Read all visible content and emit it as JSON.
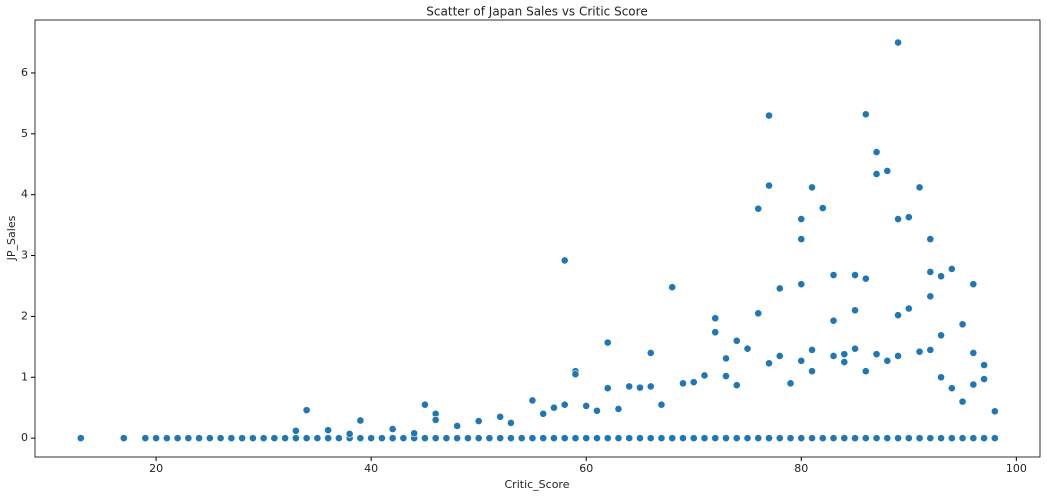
{
  "chart_data": {
    "type": "scatter",
    "title": "Scatter of Japan Sales vs Critic Score",
    "x_label": "Critic_Score",
    "y_label": "JP_Sales",
    "color": "#1f77b4",
    "xlim": [
      8.74,
      102.2
    ],
    "ylim": [
      -0.31,
      6.87
    ],
    "xticks": [
      20,
      40,
      60,
      80,
      100
    ],
    "yticks": [
      0,
      1,
      2,
      3,
      4,
      5,
      6
    ],
    "x": [
      13,
      17,
      19,
      20,
      21,
      22,
      23,
      24,
      25,
      26,
      27,
      28,
      29,
      30,
      31,
      32,
      33,
      34,
      35,
      36,
      37,
      38,
      39,
      40,
      41,
      42,
      43,
      44,
      45,
      46,
      47,
      48,
      49,
      50,
      51,
      52,
      53,
      54,
      55,
      56,
      57,
      58,
      59,
      60,
      61,
      62,
      63,
      64,
      65,
      66,
      67,
      68,
      69,
      70,
      71,
      72,
      73,
      74,
      75,
      76,
      77,
      78,
      79,
      80,
      81,
      82,
      83,
      84,
      85,
      86,
      87,
      88,
      89,
      90,
      91,
      92,
      93,
      94,
      95,
      96,
      97,
      98,
      33,
      34,
      36,
      38,
      39,
      42,
      44,
      45,
      46,
      46,
      48,
      50,
      52,
      53,
      55,
      56,
      57,
      58,
      58,
      59,
      59,
      60,
      61,
      62,
      62,
      63,
      64,
      65,
      66,
      66,
      67,
      68,
      69,
      70,
      71,
      72,
      72,
      73,
      73,
      74,
      74,
      75,
      76,
      76,
      77,
      77,
      77,
      78,
      78,
      79,
      80,
      80,
      80,
      80,
      81,
      81,
      81,
      82,
      83,
      83,
      83,
      84,
      84,
      85,
      85,
      85,
      86,
      86,
      86,
      87,
      87,
      87,
      88,
      88,
      89,
      89,
      89,
      89,
      90,
      90,
      91,
      91,
      92,
      92,
      92,
      92,
      93,
      93,
      93,
      94,
      94,
      95,
      95,
      96,
      96,
      96,
      97,
      97,
      98
    ],
    "y": [
      0,
      0,
      0,
      0,
      0,
      0,
      0,
      0,
      0,
      0,
      0,
      0,
      0,
      0,
      0,
      0,
      0,
      0,
      0,
      0,
      0,
      0,
      0,
      0,
      0,
      0,
      0,
      0,
      0,
      0,
      0,
      0,
      0,
      0,
      0,
      0,
      0,
      0,
      0,
      0,
      0,
      0,
      0,
      0,
      0,
      0,
      0,
      0,
      0,
      0,
      0,
      0,
      0,
      0,
      0,
      0,
      0,
      0,
      0,
      0,
      0,
      0,
      0,
      0,
      0,
      0,
      0,
      0,
      0,
      0,
      0,
      0,
      0,
      0,
      0,
      0,
      0,
      0,
      0,
      0,
      0,
      0,
      0.12,
      0.46,
      0.13,
      0.07,
      0.29,
      0.15,
      0.08,
      0.55,
      0.4,
      0.3,
      0.2,
      0.28,
      0.35,
      0.25,
      0.62,
      0.4,
      0.5,
      2.92,
      0.55,
      1.1,
      1.05,
      0.53,
      0.45,
      1.57,
      0.82,
      0.48,
      0.85,
      0.83,
      1.4,
      0.85,
      0.55,
      2.48,
      0.9,
      0.92,
      1.03,
      1.97,
      1.74,
      1.31,
      1.02,
      1.6,
      0.87,
      1.47,
      2.05,
      3.77,
      4.15,
      5.3,
      1.23,
      2.46,
      1.35,
      0.9,
      3.6,
      3.27,
      2.53,
      1.27,
      4.12,
      1.45,
      1.1,
      3.78,
      2.68,
      1.93,
      1.35,
      1.38,
      1.25,
      2.68,
      2.1,
      1.47,
      5.32,
      2.62,
      1.1,
      4.7,
      4.34,
      1.38,
      4.39,
      1.27,
      6.5,
      3.6,
      2.02,
      1.35,
      3.63,
      2.13,
      4.12,
      1.42,
      3.27,
      2.73,
      2.33,
      1.45,
      2.66,
      1.69,
      1.0,
      2.78,
      0.82,
      1.87,
      0.6,
      2.53,
      1.4,
      0.88,
      1.2,
      0.97,
      0.44
    ]
  }
}
